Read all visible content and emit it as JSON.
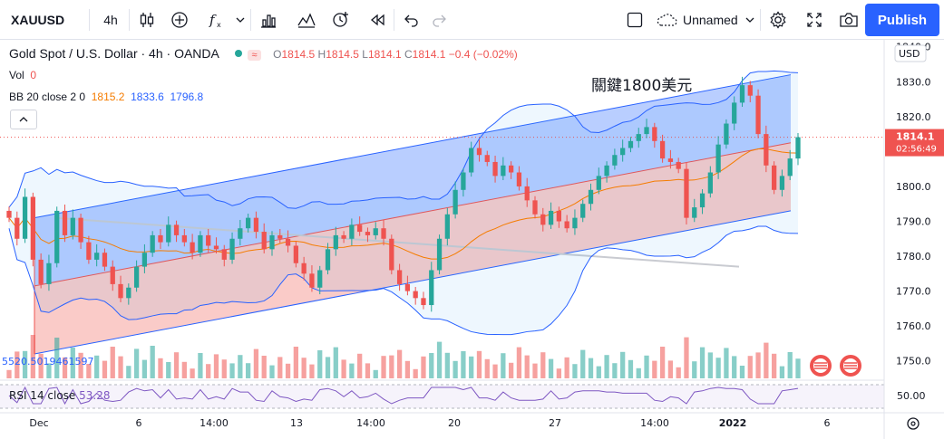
{
  "toolbar": {
    "symbol": "XAUUSD",
    "interval": "4h",
    "layout_name": "Unnamed",
    "publish_label": "Publish"
  },
  "legend": {
    "instrument": "Gold Spot / U.S. Dollar · 4h · OANDA",
    "wave_glyph": "≈",
    "ohlc": {
      "O": "1814.5",
      "H": "1814.5",
      "L": "1814.1",
      "C": "1814.1",
      "change": "−0.4 (−0.02%)"
    },
    "vol_label": "Vol",
    "vol_value": "0",
    "bb_label": "BB 20 close 2 0",
    "bb_basis": "1815.2",
    "bb_upper": "1833.6",
    "bb_lower": "1796.8"
  },
  "rsi": {
    "label": "RSI 14 close",
    "value": "53.28",
    "level_label": "50.00"
  },
  "volume_overlay_text": "5520.5019461597",
  "price_axis": {
    "ticks": [
      "1840.0",
      "1830.0",
      "1820.0",
      "1810.0",
      "1800.0",
      "1790.0",
      "1780.0",
      "1770.0",
      "1760.0",
      "1750.0"
    ],
    "currency": "USD",
    "last_price": "1814.1",
    "countdown": "02:56:49"
  },
  "time_axis": {
    "labels": [
      "Dec",
      "6",
      "14:00",
      "13",
      "14:00",
      "20",
      "27",
      "14:00",
      "2022",
      "6"
    ]
  },
  "colors": {
    "up": "#26a69a",
    "down": "#ef5350",
    "bb_basis": "#f57c00",
    "bb_band": "#2962ff",
    "channel_upper_fill": "#7fa6ff",
    "channel_lower_fill": "#f7a9a3",
    "brand": "#2962ff"
  },
  "chart_data": {
    "type": "candlestick",
    "ylim": [
      1745,
      1842
    ],
    "annotation": "關鍵1800美元",
    "closes": [
      1791,
      1785,
      1797,
      1779,
      1772,
      1778,
      1793,
      1786,
      1791,
      1784,
      1779,
      1781,
      1777,
      1772,
      1768,
      1771,
      1777,
      1781,
      1786,
      1784,
      1789,
      1786,
      1784,
      1781,
      1786,
      1783,
      1782,
      1779,
      1785,
      1788,
      1791,
      1787,
      1782,
      1786,
      1785,
      1783,
      1778,
      1775,
      1771,
      1776,
      1782,
      1786,
      1785,
      1789,
      1787,
      1786,
      1788,
      1785,
      1776,
      1772,
      1770,
      1768,
      1766,
      1776,
      1785,
      1792,
      1799,
      1804,
      1811,
      1809,
      1807,
      1803,
      1806,
      1804,
      1800,
      1796,
      1792,
      1789,
      1793,
      1790,
      1788,
      1791,
      1795,
      1799,
      1803,
      1806,
      1809,
      1811,
      1813,
      1815,
      1817,
      1813,
      1808,
      1807,
      1805,
      1791,
      1794,
      1798,
      1804,
      1812,
      1818,
      1824,
      1829,
      1826,
      1815,
      1806,
      1799,
      1803,
      1808,
      1814.1
    ],
    "rsi_level": 50
  }
}
